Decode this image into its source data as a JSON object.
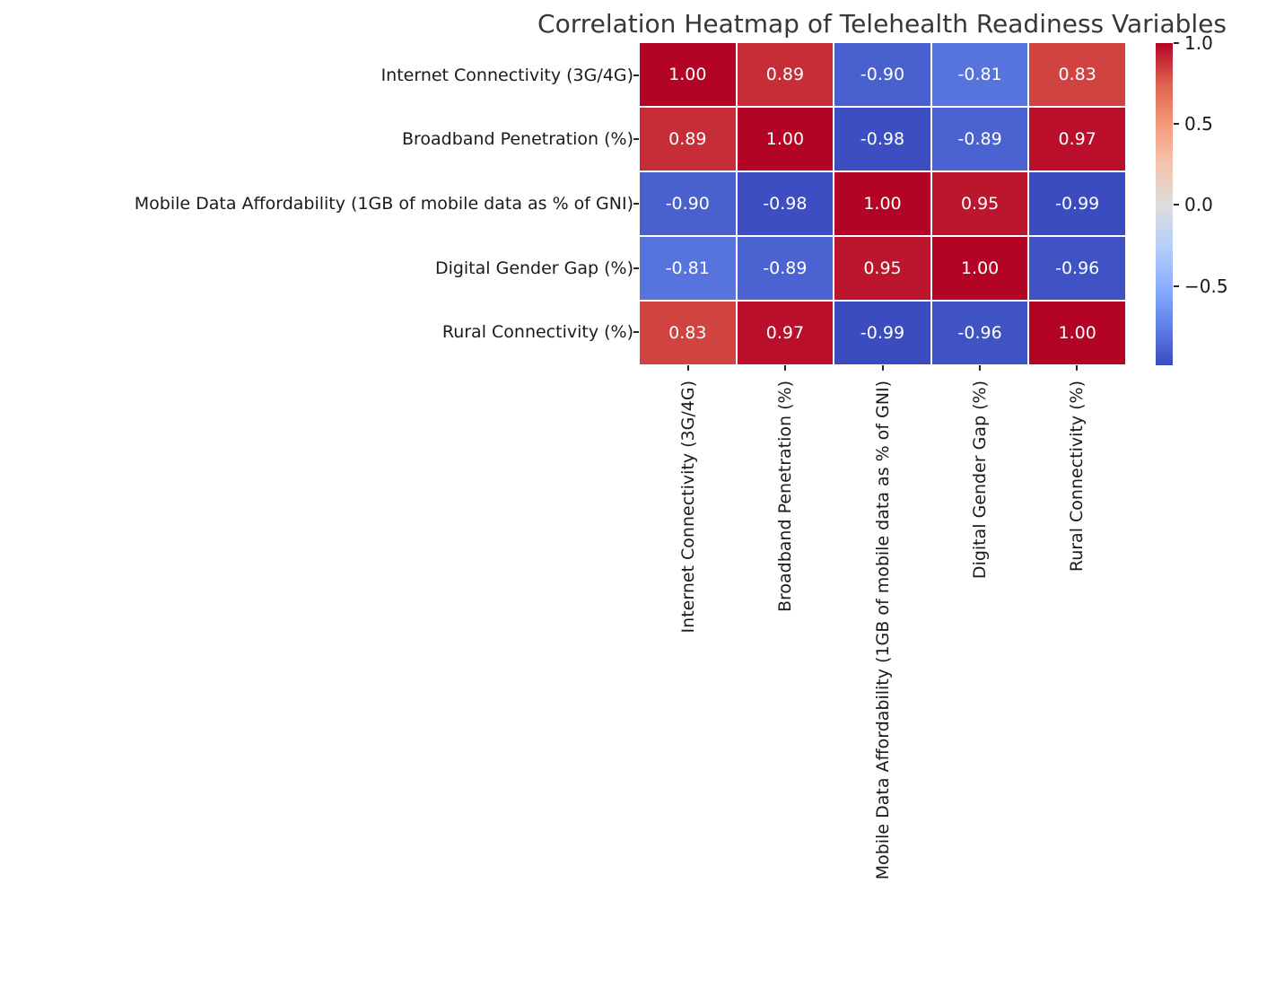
{
  "chart_data": {
    "type": "heatmap",
    "title": "Correlation Heatmap of Telehealth Readiness Variables",
    "variables": [
      "Internet Connectivity (3G/4G)",
      "Broadband Penetration (%)",
      "Mobile Data Affordability (1GB of mobile data as % of GNI)",
      "Digital Gender Gap (%)",
      "Rural Connectivity (%)"
    ],
    "matrix": [
      [
        1.0,
        0.89,
        -0.9,
        -0.81,
        0.83
      ],
      [
        0.89,
        1.0,
        -0.98,
        -0.89,
        0.97
      ],
      [
        -0.9,
        -0.98,
        1.0,
        0.95,
        -0.99
      ],
      [
        -0.81,
        -0.89,
        0.95,
        1.0,
        -0.96
      ],
      [
        0.83,
        0.97,
        -0.99,
        -0.96,
        1.0
      ]
    ],
    "vmin": -0.99,
    "vmax": 1.0,
    "colormap": "coolwarm",
    "annotation_color": "#ffffff",
    "colorbar": {
      "tick_labels": [
        "1.0",
        "0.5",
        "0.0",
        "−0.5"
      ],
      "tick_values": [
        1.0,
        0.5,
        0.0,
        -0.5
      ]
    },
    "colors": {
      "cmap_anchors": [
        {
          "t": 0.0,
          "hex": "#3b4cc0"
        },
        {
          "t": 0.125,
          "hex": "#6282ea"
        },
        {
          "t": 0.25,
          "hex": "#8db0fe"
        },
        {
          "t": 0.375,
          "hex": "#b8d0f9"
        },
        {
          "t": 0.5,
          "hex": "#dddddd"
        },
        {
          "t": 0.625,
          "hex": "#f5c4ad"
        },
        {
          "t": 0.75,
          "hex": "#f49a7b"
        },
        {
          "t": 0.875,
          "hex": "#de604d"
        },
        {
          "t": 1.0,
          "hex": "#b40426"
        }
      ],
      "title_color": "#373737",
      "tick_label_color": "#1a1a1a"
    }
  }
}
